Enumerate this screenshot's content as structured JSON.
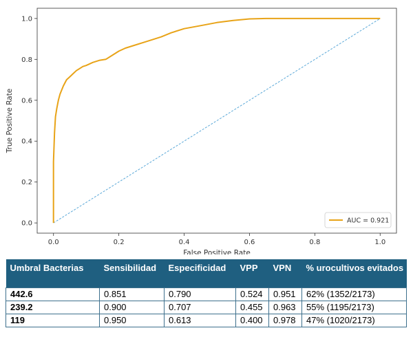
{
  "chart_data": {
    "type": "line",
    "title": "",
    "xlabel": "False Positive Rate",
    "ylabel": "True Positive Rate",
    "xlim": [
      -0.05,
      1.05
    ],
    "ylim": [
      -0.05,
      1.05
    ],
    "xticks": [
      0.0,
      0.2,
      0.4,
      0.6,
      0.8,
      1.0
    ],
    "yticks": [
      0.0,
      0.2,
      0.4,
      0.6,
      0.8,
      1.0
    ],
    "xtick_labels": [
      "0.0",
      "0.2",
      "0.4",
      "0.6",
      "0.8",
      "1.0"
    ],
    "ytick_labels": [
      "0.0",
      "0.2",
      "0.4",
      "0.6",
      "0.8",
      "1.0"
    ],
    "grid": false,
    "legend_position": "bottom-right",
    "series": [
      {
        "name": "AUC = 0.921",
        "color": "#e8a317",
        "style": "solid",
        "x": [
          0.0,
          0.0,
          0.003,
          0.006,
          0.01,
          0.015,
          0.02,
          0.03,
          0.04,
          0.05,
          0.06,
          0.07,
          0.08,
          0.09,
          0.1,
          0.12,
          0.14,
          0.16,
          0.18,
          0.2,
          0.22,
          0.25,
          0.28,
          0.3,
          0.33,
          0.36,
          0.4,
          0.45,
          0.5,
          0.55,
          0.6,
          0.65,
          0.7,
          0.8,
          0.9,
          1.0
        ],
        "y": [
          0.0,
          0.3,
          0.44,
          0.52,
          0.56,
          0.6,
          0.63,
          0.67,
          0.7,
          0.715,
          0.73,
          0.745,
          0.755,
          0.765,
          0.77,
          0.785,
          0.795,
          0.8,
          0.82,
          0.84,
          0.855,
          0.87,
          0.885,
          0.895,
          0.91,
          0.93,
          0.95,
          0.965,
          0.98,
          0.99,
          0.998,
          1.0,
          1.0,
          1.0,
          1.0,
          1.0
        ]
      },
      {
        "name": "",
        "color": "#5aa8d8",
        "style": "dashed",
        "x": [
          0.0,
          1.0
        ],
        "y": [
          0.0,
          1.0
        ]
      }
    ]
  },
  "table": {
    "headers": [
      "Umbral Bacterias",
      "Sensibilidad",
      "Especificidad",
      "VPP",
      "VPN",
      "% urocultivos evitados"
    ],
    "rows": [
      [
        "442.6",
        "0.851",
        "0.790",
        "0.524",
        "0.951",
        "62% (1352/2173)"
      ],
      [
        "239.2",
        "0.900",
        "0.707",
        "0.455",
        "0.963",
        "55% (1195/2173)"
      ],
      [
        "119",
        "0.950",
        "0.613",
        "0.400",
        "0.978",
        "47% (1020/2173)"
      ]
    ]
  }
}
